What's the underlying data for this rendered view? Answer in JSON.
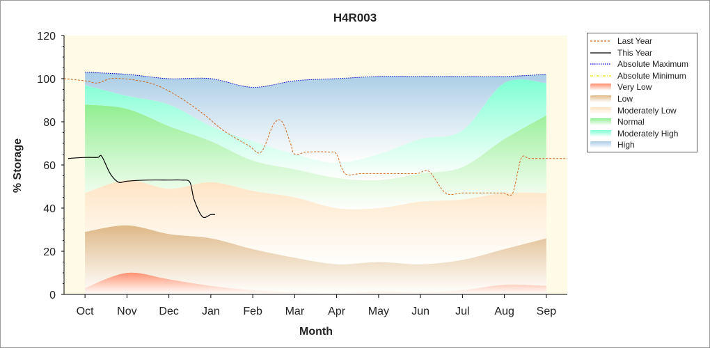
{
  "chart_data": {
    "type": "area",
    "title": "H4R003",
    "xlabel": "Month",
    "ylabel": "% Storage",
    "ylim": [
      0,
      120
    ],
    "yticks": [
      0,
      20,
      40,
      60,
      80,
      100,
      120
    ],
    "categories": [
      "Oct",
      "Nov",
      "Dec",
      "Jan",
      "Feb",
      "Mar",
      "Apr",
      "May",
      "Jun",
      "Jul",
      "Aug",
      "Sep"
    ],
    "band_x": [
      0,
      1,
      2,
      3,
      4,
      5,
      6,
      7,
      8,
      9,
      10,
      11
    ],
    "bands": [
      {
        "name": "Very Low",
        "color": "#ff9070",
        "lower": [
          0,
          0,
          0,
          0,
          0,
          0,
          0,
          0,
          0,
          0,
          0,
          0
        ],
        "upper": [
          3,
          10,
          7,
          4,
          2,
          1,
          0.5,
          1.5,
          1,
          2,
          4.5,
          4
        ]
      },
      {
        "name": "Low",
        "color": "#deb887",
        "lower": [
          3,
          10,
          7,
          4,
          2,
          1,
          0.5,
          1.5,
          1,
          2,
          4.5,
          4
        ],
        "upper": [
          29,
          32,
          28,
          26,
          21,
          17,
          14,
          15,
          14,
          16,
          21,
          26
        ]
      },
      {
        "name": "Moderately Low",
        "color": "#ffe4c4",
        "lower": [
          29,
          32,
          28,
          26,
          21,
          17,
          14,
          15,
          14,
          16,
          21,
          26
        ],
        "upper": [
          47,
          53,
          49,
          52,
          48,
          45,
          40,
          40,
          43,
          44,
          47,
          47
        ]
      },
      {
        "name": "Normal",
        "color": "#90ee90",
        "lower": [
          47,
          53,
          49,
          52,
          48,
          45,
          40,
          40,
          43,
          44,
          47,
          47
        ],
        "upper": [
          88,
          86,
          78,
          71,
          62,
          58,
          54,
          53,
          56,
          59,
          72,
          83
        ]
      },
      {
        "name": "Moderately High",
        "color": "#7fffd4",
        "lower": [
          88,
          86,
          78,
          71,
          62,
          58,
          54,
          53,
          56,
          59,
          72,
          83
        ],
        "upper": [
          97,
          92,
          88,
          78,
          71,
          65,
          61,
          65,
          72,
          76,
          98,
          98
        ]
      },
      {
        "name": "High",
        "color": "#a8cce6",
        "lower": [
          97,
          92,
          88,
          78,
          71,
          65,
          61,
          65,
          72,
          76,
          98,
          98
        ],
        "upper": [
          103,
          102,
          100,
          100,
          96,
          99,
          100,
          101,
          101,
          101,
          101,
          102
        ]
      }
    ],
    "series": [
      {
        "name": "Last Year",
        "color": "#d2691e",
        "style": "dashed",
        "x": [
          -0.5,
          0,
          0.3,
          0.6,
          0.9,
          1.3,
          1.7,
          2.2,
          2.8,
          3.3,
          3.9,
          4.2,
          4.5,
          4.7,
          4.9,
          5.0,
          5.3,
          5.8,
          6.0,
          6.2,
          6.6,
          7.3,
          7.9,
          8.2,
          8.6,
          9.0,
          9.5,
          9.9,
          10.0,
          10.2,
          10.4,
          10.6,
          11.0,
          11.5
        ],
        "y": [
          100,
          99,
          98,
          100,
          100,
          99,
          97,
          92,
          84,
          76,
          69,
          66,
          79,
          80,
          70,
          65,
          66,
          66,
          65,
          56,
          56,
          56,
          56,
          57,
          47,
          47,
          47,
          47,
          47,
          47,
          63,
          63,
          63,
          63
        ]
      },
      {
        "name": "This Year",
        "color": "#000000",
        "style": "solid",
        "x": [
          -0.4,
          0,
          0.3,
          0.4,
          0.6,
          0.8,
          1.0,
          1.5,
          2.0,
          2.3,
          2.5,
          2.6,
          2.8,
          3.0,
          3.1
        ],
        "y": [
          63,
          63.5,
          63.5,
          64,
          56,
          52,
          52.5,
          53,
          53,
          53,
          52,
          44,
          36,
          37,
          37
        ]
      },
      {
        "name": "Absolute Maximum",
        "color": "#0000cd",
        "style": "dotted",
        "x": [
          0,
          1,
          2,
          3,
          4,
          5,
          6,
          7,
          8,
          9,
          10,
          11
        ],
        "y": [
          103,
          102,
          100,
          100,
          96,
          99,
          100,
          101,
          101,
          101,
          101,
          102
        ]
      },
      {
        "name": "Absolute Minimum",
        "color": "#e8e800",
        "style": "dashdot",
        "x": [],
        "y": []
      }
    ],
    "legend": [
      {
        "name": "Last Year",
        "kind": "line",
        "color": "#d2691e",
        "style": "dashed"
      },
      {
        "name": "This Year",
        "kind": "line",
        "color": "#000000",
        "style": "solid"
      },
      {
        "name": "Absolute Maximum",
        "kind": "line",
        "color": "#0000cd",
        "style": "dotted"
      },
      {
        "name": "Absolute Minimum",
        "kind": "line",
        "color": "#e8e800",
        "style": "dashdot"
      },
      {
        "name": "Very Low",
        "kind": "area",
        "color": "#ff9070"
      },
      {
        "name": "Low",
        "kind": "area",
        "color": "#deb887"
      },
      {
        "name": "Moderately Low",
        "kind": "area",
        "color": "#ffe4c4"
      },
      {
        "name": "Normal",
        "kind": "area",
        "color": "#90ee90"
      },
      {
        "name": "Moderately High",
        "kind": "area",
        "color": "#7fffd4"
      },
      {
        "name": "High",
        "kind": "area",
        "color": "#a8cce6"
      }
    ],
    "legend_position": "right",
    "plot_background": "#fffbe6",
    "grid": false
  }
}
